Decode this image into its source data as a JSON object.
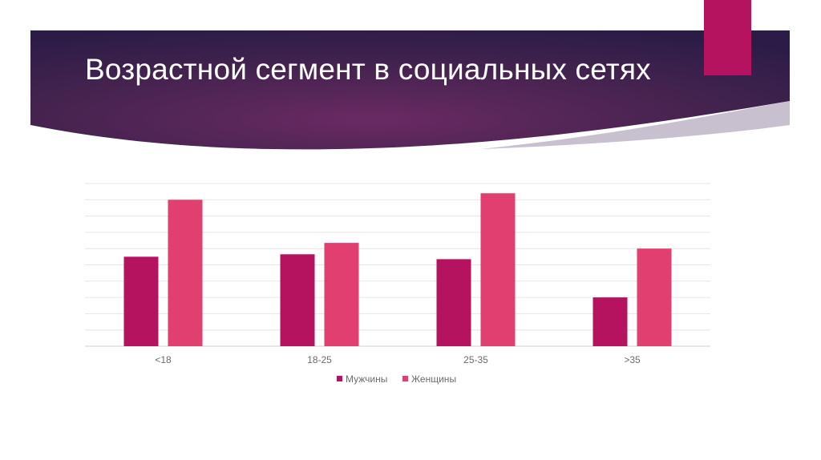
{
  "slide": {
    "title": "Возрастной сегмент в социальных сетях"
  },
  "colors": {
    "banner_dark": "#2b1c47",
    "banner_mid": "#6a2a63",
    "accent": "#b5135f",
    "series_men": "#b5135f",
    "series_women": "#e23f71",
    "grid": "#e6e6e6",
    "axis_text": "#6b6b6b"
  },
  "chart_data": {
    "type": "bar",
    "categories": [
      "<18",
      "18-25",
      "25-35",
      ">35"
    ],
    "series": [
      {
        "name": "Мужчины",
        "values": [
          11,
          11.3,
          10.7,
          6
        ]
      },
      {
        "name": "Женщины",
        "values": [
          18,
          12.7,
          18.8,
          12
        ]
      }
    ],
    "ylim": [
      0,
      20
    ],
    "grid": true,
    "legend": "bottom",
    "xlabel": "",
    "ylabel": ""
  }
}
